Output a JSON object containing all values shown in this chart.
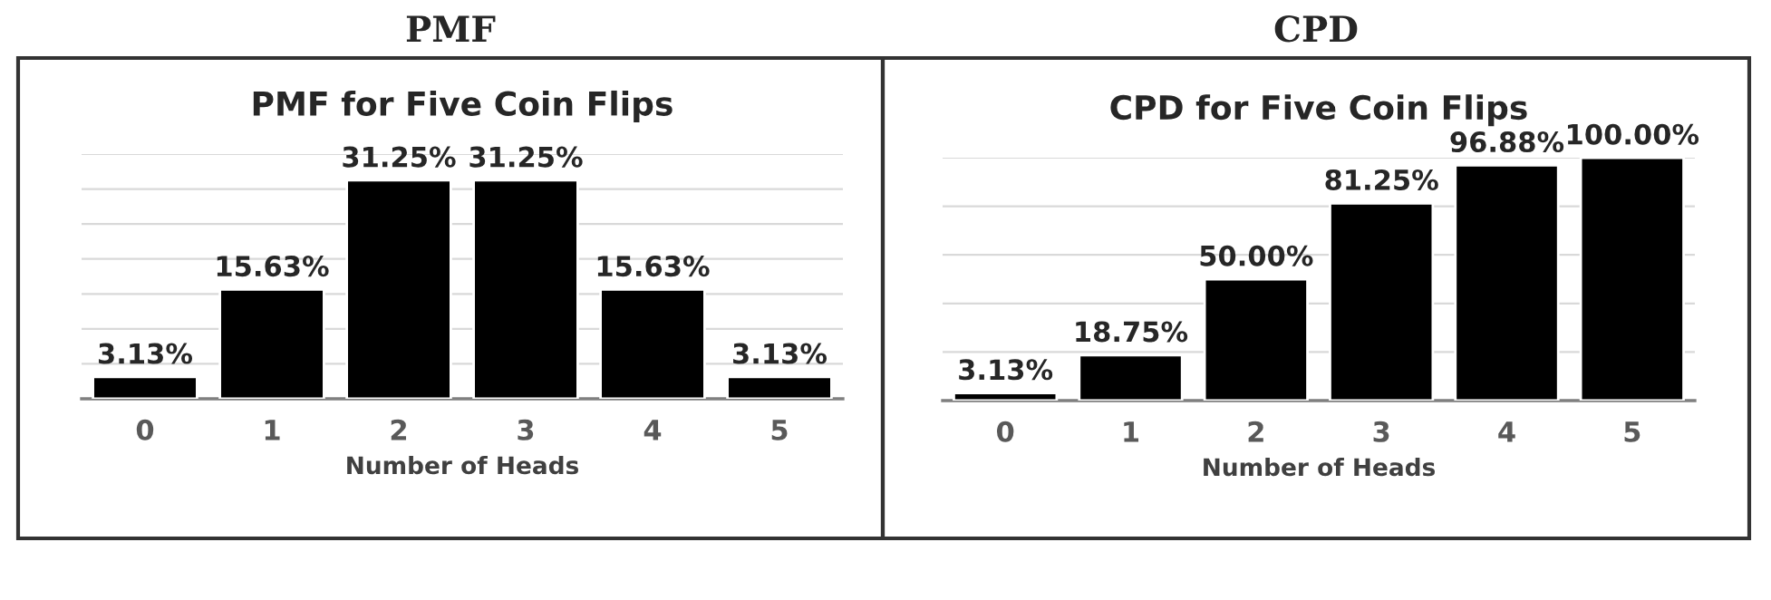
{
  "chart_data": [
    {
      "type": "bar",
      "title": "PMF",
      "subtitle": "PMF for Five Coin Flips",
      "xlabel": "Number of Heads",
      "categories": [
        "0",
        "1",
        "2",
        "3",
        "4",
        "5"
      ],
      "values": [
        3.13,
        15.63,
        31.25,
        31.25,
        15.63,
        3.13
      ],
      "value_labels": [
        "3.13%",
        "15.63%",
        "31.25%",
        "31.25%",
        "15.63%",
        "3.13%"
      ],
      "color": "#000000",
      "ylim": [
        0,
        35
      ],
      "yticks": [
        {
          "value": 0,
          "label": null
        },
        {
          "value": 5,
          "label": null
        },
        {
          "value": 10,
          "label": null
        },
        {
          "value": 15,
          "label": null
        },
        {
          "value": 20,
          "label": null
        },
        {
          "value": 25,
          "label": null
        },
        {
          "value": 30,
          "label": null
        },
        {
          "value": 35,
          "label": null
        }
      ],
      "tick_labels": "x",
      "grid": "y"
    },
    {
      "type": "bar",
      "title": "CPD",
      "subtitle": "CPD for Five Coin Flips",
      "xlabel": "Number of Heads",
      "categories": [
        "0",
        "1",
        "2",
        "3",
        "4",
        "5"
      ],
      "values": [
        3.13,
        18.75,
        50.0,
        81.25,
        96.88,
        100.0
      ],
      "value_labels": [
        "3.13%",
        "18.75%",
        "50.00%",
        "81.25%",
        "96.88%",
        "100.00%"
      ],
      "color": "#000000",
      "ylim": [
        0,
        100
      ],
      "yticks": [
        {
          "value": 0,
          "label": null
        },
        {
          "value": 20,
          "label": null
        },
        {
          "value": 40,
          "label": null
        },
        {
          "value": 60,
          "label": null
        },
        {
          "value": 80,
          "label": null
        },
        {
          "value": 100,
          "label": null
        }
      ],
      "tick_labels": "x",
      "grid": "y"
    }
  ]
}
